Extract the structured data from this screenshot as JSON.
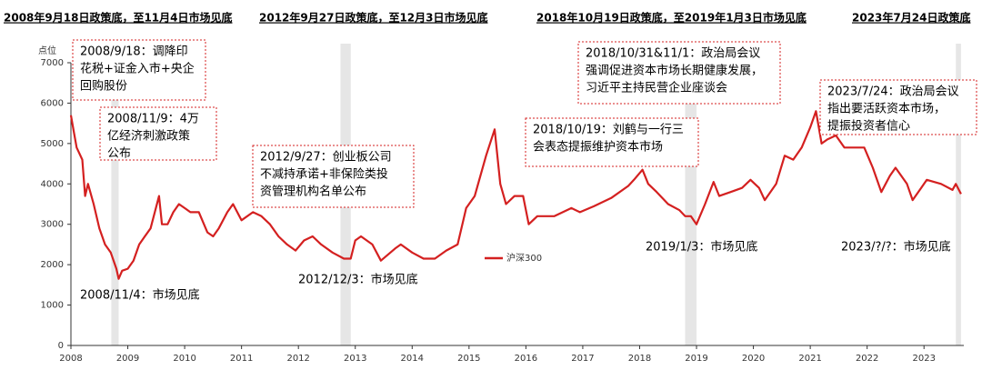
{
  "chart_data": {
    "type": "line",
    "headers": [
      "2008年9月18日政策底，至11月4日市场见底",
      "2012年9月27日政策底，至12月3日市场见底",
      "2018年10月19日政策底，至2019年1月3日市场见底",
      "2023年7月24日政策底"
    ],
    "y_label": "点位",
    "x": [
      2008.0,
      2008.05,
      2008.1,
      2008.2,
      2008.25,
      2008.3,
      2008.4,
      2008.5,
      2008.6,
      2008.7,
      2008.8,
      2008.84,
      2008.9,
      2009.0,
      2009.1,
      2009.2,
      2009.3,
      2009.4,
      2009.55,
      2009.6,
      2009.7,
      2009.8,
      2009.9,
      2010.0,
      2010.1,
      2010.25,
      2010.4,
      2010.5,
      2010.6,
      2010.75,
      2010.85,
      2011.0,
      2011.2,
      2011.35,
      2011.5,
      2011.65,
      2011.8,
      2011.95,
      2012.1,
      2012.25,
      2012.4,
      2012.6,
      2012.8,
      2012.92,
      2013.0,
      2013.1,
      2013.3,
      2013.45,
      2013.7,
      2013.8,
      2014.0,
      2014.2,
      2014.4,
      2014.6,
      2014.8,
      2014.95,
      2015.1,
      2015.3,
      2015.45,
      2015.55,
      2015.65,
      2015.8,
      2015.95,
      2016.05,
      2016.2,
      2016.5,
      2016.8,
      2016.95,
      2017.2,
      2017.5,
      2017.8,
      2017.9,
      2018.05,
      2018.15,
      2018.3,
      2018.5,
      2018.7,
      2018.8,
      2018.9,
      2019.0,
      2019.15,
      2019.3,
      2019.4,
      2019.6,
      2019.8,
      2019.95,
      2020.1,
      2020.2,
      2020.4,
      2020.55,
      2020.7,
      2020.85,
      2021.0,
      2021.1,
      2021.2,
      2021.3,
      2021.45,
      2021.6,
      2021.75,
      2021.95,
      2022.1,
      2022.25,
      2022.4,
      2022.5,
      2022.7,
      2022.8,
      2022.95,
      2023.05,
      2023.3,
      2023.5,
      2023.56,
      2023.65
    ],
    "series": [
      {
        "name": "沪深300",
        "color": "#d42020",
        "values": [
          5700,
          5300,
          4900,
          4600,
          3700,
          4000,
          3500,
          2900,
          2500,
          2300,
          1900,
          1650,
          1850,
          1900,
          2100,
          2500,
          2700,
          2900,
          3700,
          3000,
          3000,
          3300,
          3500,
          3400,
          3300,
          3300,
          2800,
          2700,
          2900,
          3300,
          3500,
          3100,
          3300,
          3200,
          3000,
          2700,
          2500,
          2350,
          2600,
          2700,
          2500,
          2300,
          2150,
          2150,
          2600,
          2700,
          2500,
          2100,
          2400,
          2500,
          2300,
          2150,
          2150,
          2350,
          2500,
          3400,
          3700,
          4700,
          5350,
          4000,
          3500,
          3700,
          3700,
          3000,
          3200,
          3200,
          3400,
          3300,
          3450,
          3650,
          3950,
          4100,
          4350,
          4000,
          3800,
          3500,
          3350,
          3200,
          3200,
          3000,
          3500,
          4050,
          3700,
          3800,
          3900,
          4100,
          3900,
          3600,
          4000,
          4700,
          4600,
          4900,
          5400,
          5800,
          5000,
          5100,
          5200,
          4900,
          4900,
          4900,
          4400,
          3800,
          4200,
          4400,
          4000,
          3600,
          3900,
          4100,
          4000,
          3850,
          4000,
          3750
        ]
      }
    ],
    "shaded_periods": [
      [
        2008.71,
        2008.84
      ],
      [
        2012.74,
        2012.92
      ],
      [
        2018.8,
        2019.0
      ],
      [
        2023.56,
        2023.65
      ]
    ],
    "xlim": [
      2008,
      2023.7
    ],
    "xticks": [
      2008,
      2009,
      2010,
      2011,
      2012,
      2013,
      2014,
      2015,
      2016,
      2017,
      2018,
      2019,
      2020,
      2021,
      2022,
      2023
    ],
    "ylim": [
      0,
      7000
    ],
    "yticks": [
      0,
      1000,
      2000,
      3000,
      4000,
      5000,
      6000,
      7000
    ],
    "annotations": [
      {
        "lines": [
          "2008/9/18：调降印",
          "花税+证金入市+央企",
          "回购股份"
        ],
        "boxed": true
      },
      {
        "lines": [
          "2008/11/9：4万",
          "亿经济刺激政策",
          "公布"
        ],
        "boxed": true
      },
      {
        "lines": [
          "2012/9/27：创业板公司",
          "不减持承诺+非保险类投",
          "资管理机构名单公布"
        ],
        "boxed": true
      },
      {
        "lines": [
          "2018/10/19：刘鹤与一行三",
          "会表态提振维护资本市场"
        ],
        "boxed": true
      },
      {
        "lines": [
          "2018/10/31&11/1：政治局会议",
          "强调促进资本市场长期健康发展，",
          "习近平主持民营企业座谈会"
        ],
        "boxed": true
      },
      {
        "lines": [
          "2023/7/24：政治局会议",
          "指出要活跃资本市场，",
          "提振投资者信心"
        ],
        "boxed": true
      },
      {
        "lines": [
          "2008/11/4：市场见底"
        ],
        "boxed": false
      },
      {
        "lines": [
          "2012/12/3：市场见底"
        ],
        "boxed": false
      },
      {
        "lines": [
          "2019/1/3：市场见底"
        ],
        "boxed": false
      },
      {
        "lines": [
          "2023/?/?：市场见底"
        ],
        "boxed": false
      }
    ]
  }
}
